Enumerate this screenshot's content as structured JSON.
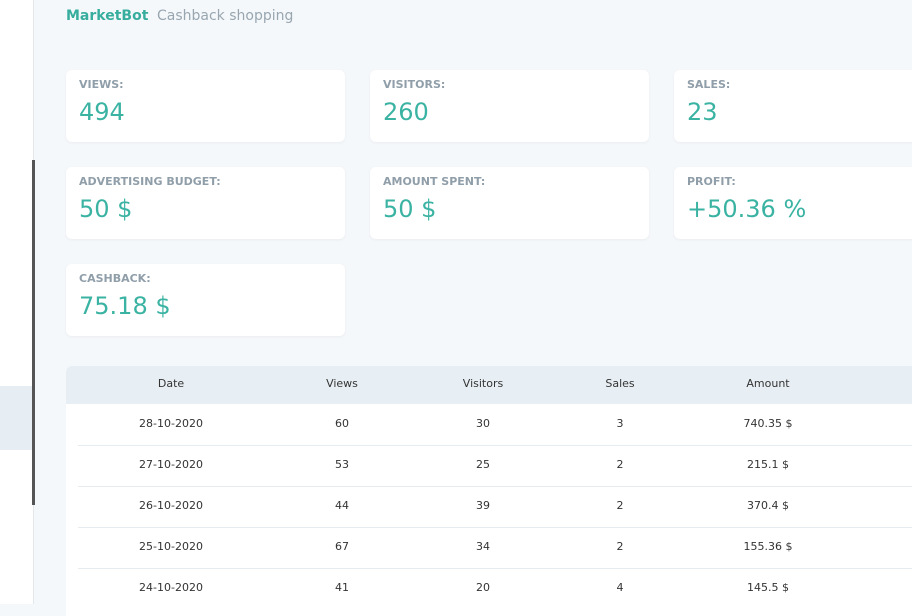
{
  "tabs": [
    "MarketBot",
    "Cashback shopping"
  ],
  "cards": [
    {
      "label": "VIEWS:",
      "value": "494"
    },
    {
      "label": "VISITORS:",
      "value": "260"
    },
    {
      "label": "SALES:",
      "value": "23"
    },
    {
      "label": "ADVERTISING BUDGET:",
      "value": "50 $"
    },
    {
      "label": "AMOUNT SPENT:",
      "value": "50 $"
    },
    {
      "label": "PROFIT:",
      "value": "+50.36 %"
    },
    {
      "label": "CASHBACK:",
      "value": "75.18 $"
    }
  ],
  "table": {
    "header": [
      "Date",
      "Views",
      "Visitors",
      "Sales",
      "Amount"
    ],
    "rows": [
      [
        "28-10-2020",
        "60",
        "30",
        "3",
        "740.35 $"
      ],
      [
        "27-10-2020",
        "53",
        "25",
        "2",
        "215.1 $"
      ],
      [
        "26-10-2020",
        "44",
        "39",
        "2",
        "370.4 $"
      ],
      [
        "25-10-2020",
        "67",
        "34",
        "2",
        "155.36 $"
      ],
      [
        "24-10-2020",
        "41",
        "20",
        "4",
        "145.5 $"
      ]
    ]
  }
}
